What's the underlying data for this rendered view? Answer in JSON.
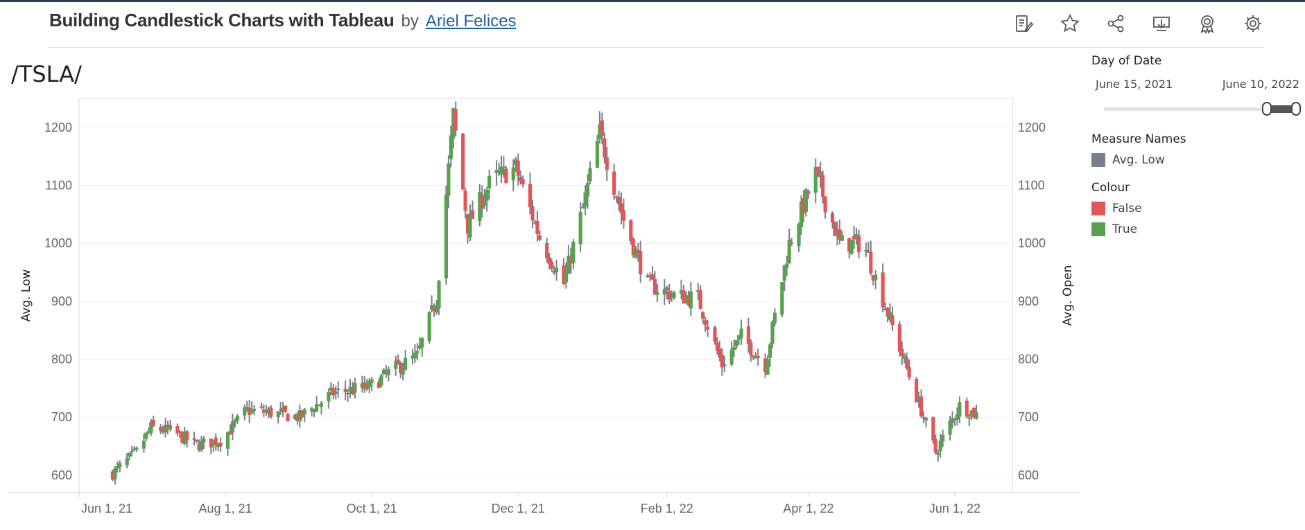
{
  "header": {
    "title": "Building Candlestick Charts with Tableau",
    "by": "by",
    "author": "Ariel Felices"
  },
  "toolbar": {
    "icons": [
      "edit-icon",
      "favorite-star-icon",
      "share-icon",
      "download-icon",
      "badge-icon",
      "settings-gear-icon"
    ]
  },
  "worksheet_title": "/TSLA/",
  "filter": {
    "label": "Day of Date",
    "start": "June 15, 2021",
    "end": "June 10, 2022"
  },
  "legend_measure": {
    "title": "Measure Names",
    "items": [
      {
        "label": "Avg. Low",
        "color": "#79808c"
      }
    ]
  },
  "legend_colour": {
    "title": "Colour",
    "items": [
      {
        "label": "False",
        "color": "#e15759"
      },
      {
        "label": "True",
        "color": "#59a14f"
      }
    ]
  },
  "chart_data": {
    "type": "candlestick",
    "ylabel_left": "Avg. Low",
    "ylabel_right": "Avg. Open",
    "ylim": [
      570,
      1250
    ],
    "y_ticks": [
      600,
      700,
      800,
      900,
      1000,
      1100,
      1200
    ],
    "x_ticks": [
      "Jun 1, 21",
      "Aug 1, 21",
      "Oct 1, 21",
      "Dec 1, 21",
      "Feb 1, 22",
      "Apr 1, 22",
      "Jun 1, 22"
    ],
    "x_tick_dates": [
      "2021-06-01",
      "2021-08-01",
      "2021-10-01",
      "2021-12-01",
      "2022-02-01",
      "2022-04-01",
      "2022-06-01"
    ],
    "xlim": [
      "2021-06-01",
      "2022-06-25"
    ],
    "colors": {
      "up": "#59a14f",
      "down": "#e15759",
      "wick": "#79808c"
    },
    "anchors": [
      {
        "date": "2021-06-15",
        "close": 603
      },
      {
        "date": "2021-06-25",
        "close": 640
      },
      {
        "date": "2021-07-01",
        "close": 682
      },
      {
        "date": "2021-07-10",
        "close": 675
      },
      {
        "date": "2021-07-20",
        "close": 652
      },
      {
        "date": "2021-07-30",
        "close": 660
      },
      {
        "date": "2021-08-10",
        "close": 712
      },
      {
        "date": "2021-08-20",
        "close": 708
      },
      {
        "date": "2021-09-01",
        "close": 700
      },
      {
        "date": "2021-09-15",
        "close": 742
      },
      {
        "date": "2021-09-30",
        "close": 752
      },
      {
        "date": "2021-10-10",
        "close": 782
      },
      {
        "date": "2021-10-20",
        "close": 805
      },
      {
        "date": "2021-10-28",
        "close": 905
      },
      {
        "date": "2021-11-04",
        "close": 1220
      },
      {
        "date": "2021-11-10",
        "close": 1030
      },
      {
        "date": "2021-11-20",
        "close": 1110
      },
      {
        "date": "2021-11-30",
        "close": 1130
      },
      {
        "date": "2021-12-10",
        "close": 1010
      },
      {
        "date": "2021-12-20",
        "close": 930
      },
      {
        "date": "2021-12-28",
        "close": 1060
      },
      {
        "date": "2022-01-04",
        "close": 1190
      },
      {
        "date": "2022-01-14",
        "close": 1040
      },
      {
        "date": "2022-01-24",
        "close": 930
      },
      {
        "date": "2022-02-04",
        "close": 910
      },
      {
        "date": "2022-02-14",
        "close": 905
      },
      {
        "date": "2022-02-24",
        "close": 790
      },
      {
        "date": "2022-03-04",
        "close": 840
      },
      {
        "date": "2022-03-14",
        "close": 790
      },
      {
        "date": "2022-03-24",
        "close": 1000
      },
      {
        "date": "2022-04-04",
        "close": 1120
      },
      {
        "date": "2022-04-14",
        "close": 1000
      },
      {
        "date": "2022-04-24",
        "close": 1000
      },
      {
        "date": "2022-05-04",
        "close": 880
      },
      {
        "date": "2022-05-14",
        "close": 760
      },
      {
        "date": "2022-05-24",
        "close": 640
      },
      {
        "date": "2022-06-03",
        "close": 720
      },
      {
        "date": "2022-06-10",
        "close": 705
      }
    ]
  }
}
